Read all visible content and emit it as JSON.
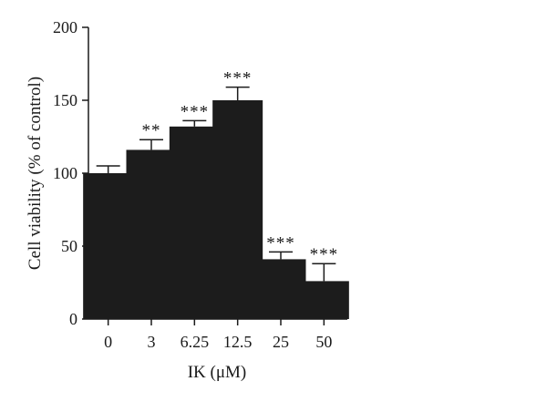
{
  "chart_data": {
    "type": "bar",
    "title": "",
    "xlabel": "IK (μM)",
    "ylabel": "Cell viability (% of control)",
    "ylim": [
      0,
      200
    ],
    "yticks": [
      0,
      50,
      100,
      150,
      200
    ],
    "categories": [
      "0",
      "3",
      "6.25",
      "12.5",
      "25",
      "50"
    ],
    "values": [
      100,
      116,
      132,
      150,
      41,
      26
    ],
    "errors": [
      5,
      7,
      4,
      9,
      5,
      12
    ],
    "significance": [
      "",
      "**",
      "***",
      "***",
      "***",
      "***"
    ],
    "grid": false,
    "legend": "none",
    "bar_color": "#1c1c1c",
    "axis_color": "#1a1a1a"
  }
}
